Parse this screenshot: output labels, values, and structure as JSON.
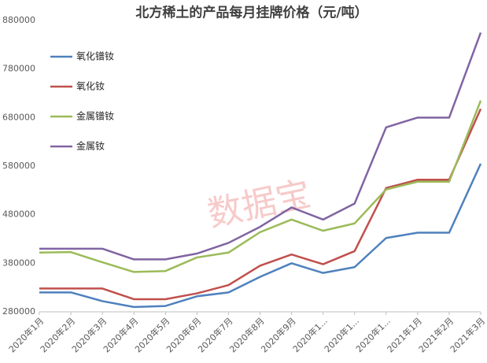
{
  "chart_data": {
    "type": "line",
    "title": "北方稀土的产品每月挂牌价格（元/吨）",
    "watermark": "数据宝",
    "categories": [
      "2020年1月",
      "2020年2月",
      "2020年3月",
      "2020年4月",
      "2020年5月",
      "2020年6月",
      "2020年7月",
      "2020年8月",
      "2020年9月",
      "2020年1...",
      "2020年1...",
      "2020年1...",
      "2021年1月",
      "2021年2月",
      "2021年3月"
    ],
    "series": [
      {
        "name": "氧化镨钕",
        "color": "#4f81bd",
        "values": [
          320000,
          320000,
          302000,
          290000,
          292000,
          312000,
          320000,
          352000,
          380000,
          360000,
          372000,
          432000,
          443000,
          443000,
          585000
        ]
      },
      {
        "name": "氧化钕",
        "color": "#c0504d",
        "values": [
          328000,
          328000,
          328000,
          306000,
          306000,
          318000,
          335000,
          375000,
          398000,
          378000,
          405000,
          535000,
          552000,
          552000,
          698000
        ]
      },
      {
        "name": "金属镨钕",
        "color": "#9bbb59",
        "values": [
          402000,
          403000,
          382000,
          362000,
          364000,
          392000,
          402000,
          444000,
          470000,
          447000,
          462000,
          532000,
          548000,
          548000,
          715000
        ]
      },
      {
        "name": "金属钕",
        "color": "#8064a2",
        "values": [
          410000,
          410000,
          410000,
          388000,
          388000,
          400000,
          422000,
          455000,
          495000,
          470000,
          503000,
          660000,
          680000,
          680000,
          855000
        ]
      }
    ],
    "ylim": [
      280000,
      880000
    ],
    "yticks": [
      280000,
      380000,
      480000,
      580000,
      680000,
      780000,
      880000
    ],
    "grid": false,
    "legend": "top-left"
  }
}
